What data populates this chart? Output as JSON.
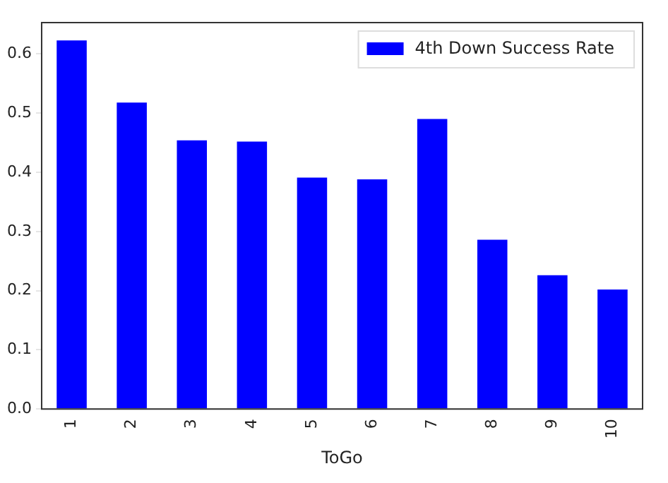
{
  "chart_data": {
    "type": "bar",
    "xlabel": "ToGo",
    "categories": [
      "1",
      "2",
      "3",
      "4",
      "5",
      "6",
      "7",
      "8",
      "9",
      "10"
    ],
    "series": [
      {
        "name": "4th Down Success Rate",
        "color": "#0000ff",
        "values": [
          0.623,
          0.518,
          0.454,
          0.452,
          0.391,
          0.388,
          0.49,
          0.286,
          0.226,
          0.202
        ]
      }
    ],
    "ylim": [
      0,
      0.653
    ],
    "yticks": [
      {
        "value": 0,
        "label": "0.0"
      },
      {
        "value": 0.1,
        "label": "0.1"
      },
      {
        "value": 0.2,
        "label": "0.2"
      },
      {
        "value": 0.3,
        "label": "0.3"
      },
      {
        "value": 0.4,
        "label": "0.4"
      },
      {
        "value": 0.5,
        "label": "0.5"
      },
      {
        "value": 0.6,
        "label": "0.6"
      }
    ],
    "grid": false,
    "legend": "top right"
  }
}
